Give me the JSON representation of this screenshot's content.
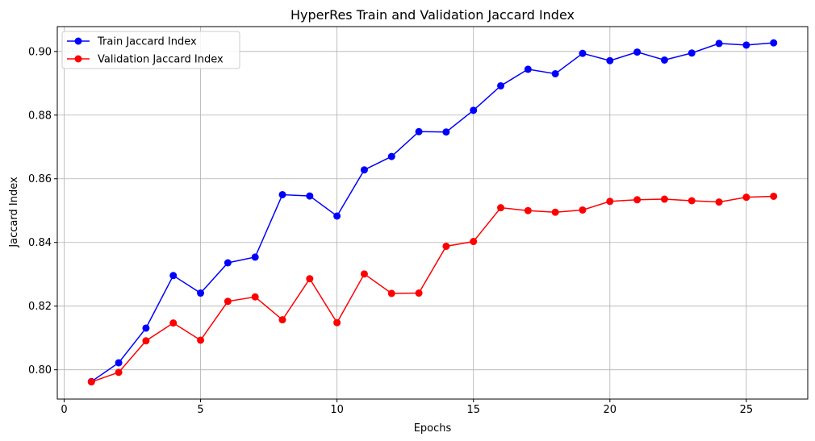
{
  "chart_data": {
    "type": "line",
    "title": "HyperRes Train and Validation Jaccard Index",
    "xlabel": "Epochs",
    "ylabel": "Jaccard Index",
    "xlim": [
      -0.25,
      27.25
    ],
    "ylim": [
      0.7908,
      0.9078
    ],
    "xticks": [
      0,
      5,
      10,
      15,
      20,
      25
    ],
    "xtick_labels": [
      "0",
      "5",
      "10",
      "15",
      "20",
      "25"
    ],
    "yticks": [
      0.8,
      0.82,
      0.84,
      0.86,
      0.88,
      0.9
    ],
    "ytick_labels": [
      "0.80",
      "0.82",
      "0.84",
      "0.86",
      "0.88",
      "0.90"
    ],
    "grid": true,
    "legend_position": "upper-left",
    "x": [
      1,
      2,
      3,
      4,
      5,
      6,
      7,
      8,
      9,
      10,
      11,
      12,
      13,
      14,
      15,
      16,
      17,
      18,
      19,
      20,
      21,
      22,
      23,
      24,
      25,
      26
    ],
    "series": [
      {
        "name": "Train Jaccard Index",
        "color": "#0000ff",
        "marker": "circle",
        "values": [
          0.7963,
          0.8022,
          0.8131,
          0.8296,
          0.8241,
          0.8336,
          0.8354,
          0.855,
          0.8546,
          0.8483,
          0.8628,
          0.867,
          0.8748,
          0.8747,
          0.8815,
          0.8892,
          0.8944,
          0.893,
          0.8994,
          0.8971,
          0.8998,
          0.8973,
          0.8995,
          0.9025,
          0.902,
          0.9027
        ]
      },
      {
        "name": "Validation Jaccard Index",
        "color": "#ff0000",
        "marker": "circle",
        "values": [
          0.7962,
          0.7992,
          0.8091,
          0.8147,
          0.8093,
          0.8215,
          0.8229,
          0.8157,
          0.8286,
          0.8148,
          0.8301,
          0.824,
          0.8241,
          0.8388,
          0.8403,
          0.8509,
          0.85,
          0.8495,
          0.8502,
          0.8529,
          0.8534,
          0.8536,
          0.8531,
          0.8527,
          0.8542,
          0.8545
        ]
      }
    ]
  }
}
